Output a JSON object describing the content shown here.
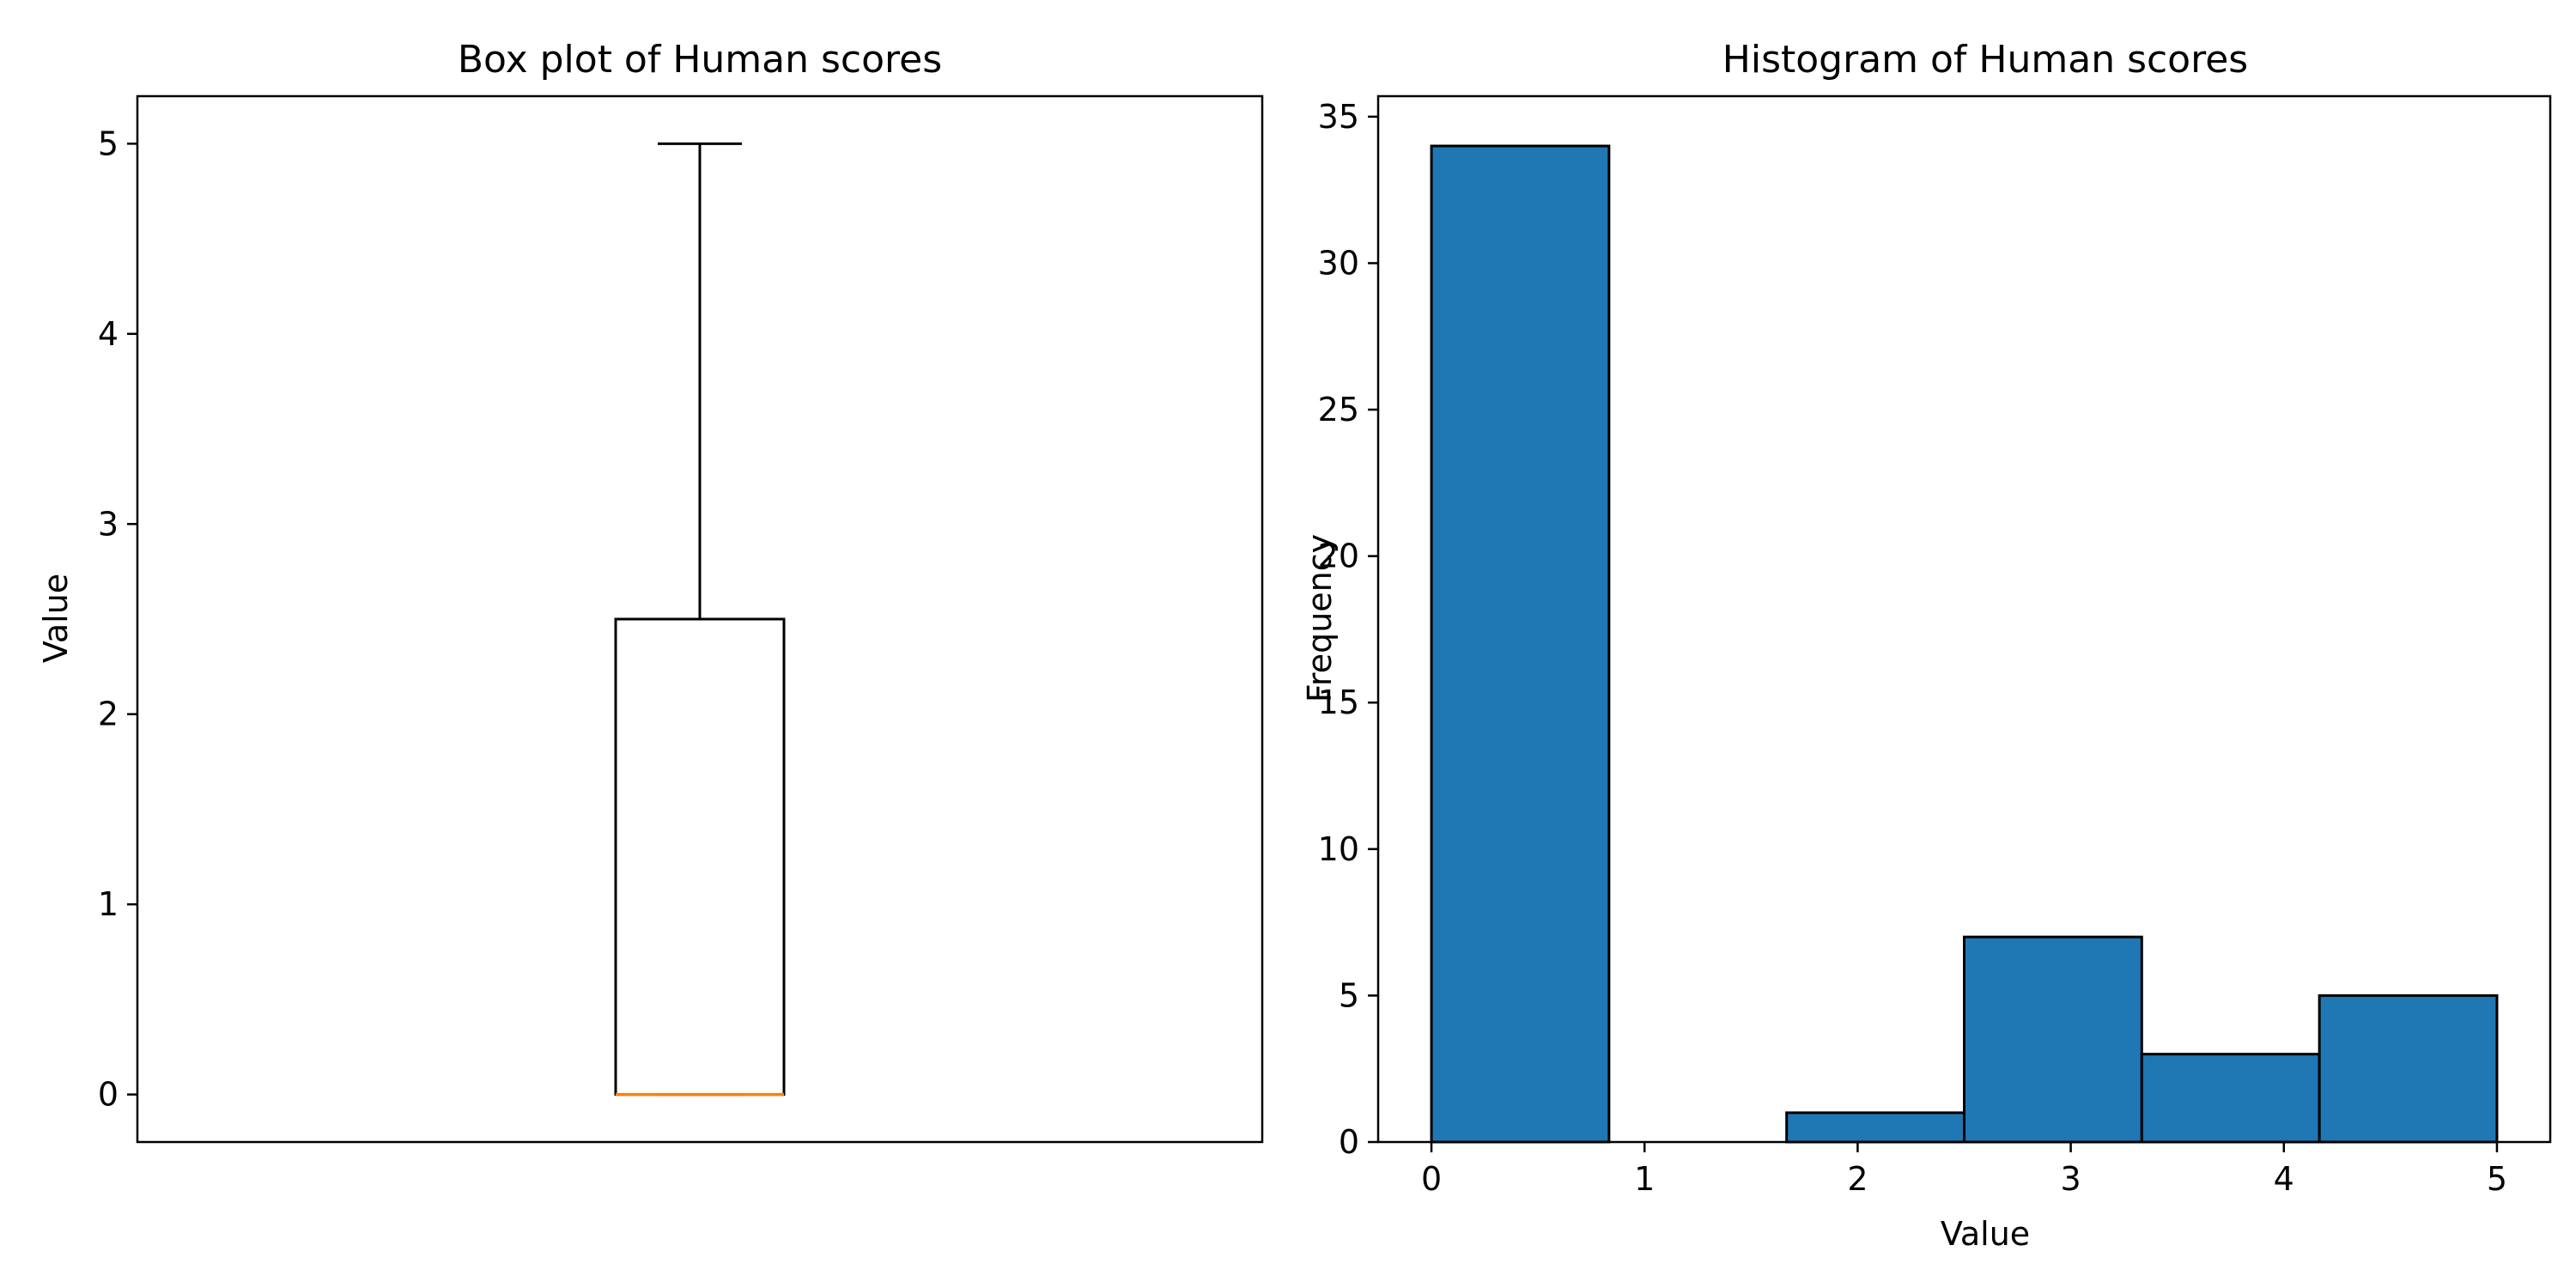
{
  "chart_data": [
    {
      "type": "box",
      "title": "Box plot of Human scores",
      "xlabel": "",
      "ylabel": "Value",
      "ylim": [
        -0.25,
        5.25
      ],
      "yticks": [
        0,
        1,
        2,
        3,
        4,
        5
      ],
      "box": {
        "whisker_low": 0,
        "q1": 0,
        "median": 0,
        "q3": 2.5,
        "whisker_high": 5
      },
      "colors": {
        "box": "#000000",
        "median": "#ff7f0e",
        "whisker": "#000000"
      },
      "grid": false
    },
    {
      "type": "bar",
      "title": "Histogram of Human scores",
      "xlabel": "Value",
      "ylabel": "Frequency",
      "xlim": [
        -0.25,
        5.25
      ],
      "ylim": [
        0,
        35.7
      ],
      "xticks": [
        0,
        1,
        2,
        3,
        4,
        5
      ],
      "yticks": [
        0,
        5,
        10,
        15,
        20,
        25,
        30,
        35
      ],
      "bin_edges": [
        0,
        0.8333,
        1.6667,
        2.5,
        3.3333,
        4.1667,
        5
      ],
      "values": [
        34,
        0,
        1,
        7,
        3,
        5
      ],
      "colors": {
        "bar": "#1f77b4",
        "edge": "#000000"
      },
      "grid": false
    }
  ]
}
